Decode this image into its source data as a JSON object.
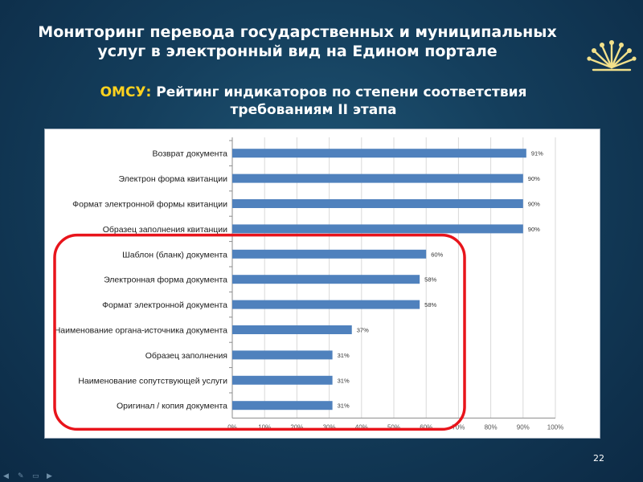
{
  "slide": {
    "title_line1": "Мониторинг перевода государственных и муниципальных",
    "title_line2": "услуг в электронный вид на Едином портале",
    "subtitle_lead": "ОМСУ:",
    "subtitle_rest": " Рейтинг индикаторов по степени соответствия",
    "subtitle_line2": "требованиям II этапа",
    "page_number": "22"
  },
  "colors": {
    "bar": "#4f81bd",
    "highlight": "#e8141b",
    "subtitle_accent": "#ffd21f"
  },
  "chart_data": {
    "type": "bar",
    "orientation": "horizontal",
    "categories": [
      "Возврат документа",
      "Электрон форма квитанции",
      "Формат электронной формы квитанции",
      "Образец заполнения квитанции",
      "Шаблон (бланк) документа",
      "Электронная форма документа",
      "Формат электронной документа",
      "Наименование органа-источника документа",
      "Образец заполнения",
      "Наименование сопутствующей услуги",
      "Оригинал / копия документа"
    ],
    "values": [
      91,
      90,
      90,
      90,
      60,
      58,
      58,
      37,
      31,
      31,
      31
    ],
    "data_labels": [
      "91%",
      "90%",
      "90%",
      "90%",
      "60%",
      "58%",
      "58%",
      "37%",
      "31%",
      "31%",
      "31%"
    ],
    "xlim": [
      0,
      100
    ],
    "xticks": [
      "0%",
      "10%",
      "20%",
      "30%",
      "40%",
      "50%",
      "60%",
      "70%",
      "80%",
      "90%",
      "100%"
    ],
    "grid": true,
    "highlight_categories": [
      4,
      5,
      6,
      7,
      8,
      9,
      10
    ]
  }
}
